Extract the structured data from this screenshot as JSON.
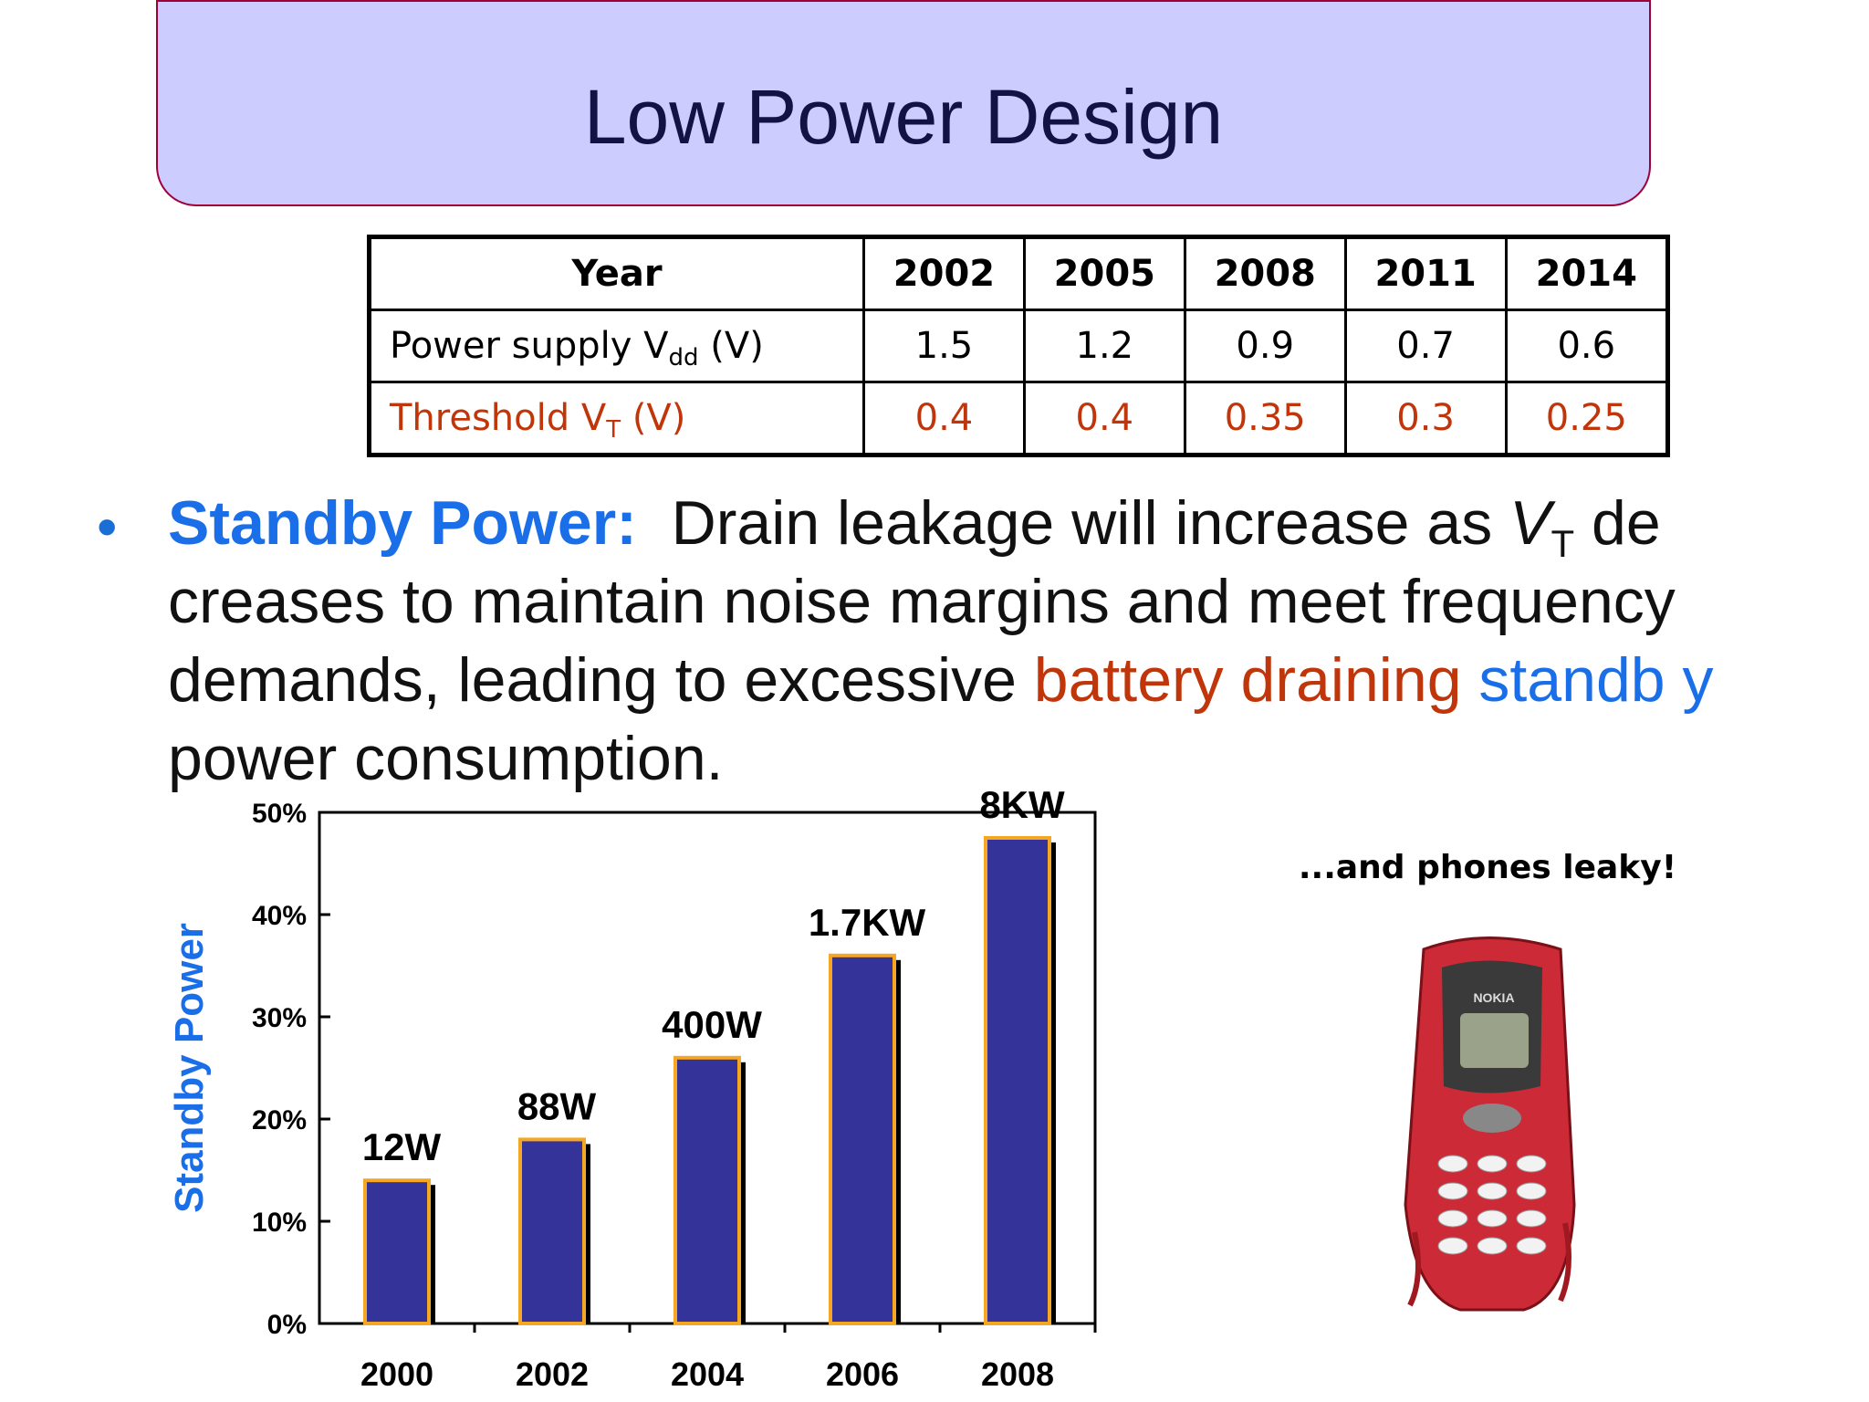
{
  "title": "Low Power Design",
  "table": {
    "header": [
      "Year",
      "2002",
      "2005",
      "2008",
      "2011",
      "2014"
    ],
    "vdd": {
      "label_main": "Power supply V",
      "label_sub": "dd",
      "label_unit": " (V)",
      "values": [
        "1.5",
        "1.2",
        "0.9",
        "0.7",
        "0.6"
      ]
    },
    "vt": {
      "label_main": "Threshold V",
      "label_sub": "T",
      "label_unit": " (V)",
      "values": [
        "0.4",
        "0.4",
        "0.35",
        "0.3",
        "0.25"
      ],
      "color": "#c0360a"
    }
  },
  "bullet": {
    "lead": "Standby Power:",
    "text1": "Drain leakage will increase as ",
    "vt_main": "V",
    "vt_sub": "T",
    "text2": " de creases to maintain noise margins and meet frequency demands, leading to excessive ",
    "red_text": "battery draining",
    "blue_text": " standb y",
    "text3": " power consumption."
  },
  "phone_caption": "...and phones leaky!",
  "phone_icon": "leaky-nokia-phone",
  "chart_data": {
    "type": "bar",
    "categories": [
      "2000",
      "2002",
      "2004",
      "2006",
      "2008"
    ],
    "values": [
      14,
      18,
      26,
      36,
      47.5
    ],
    "data_labels": [
      "12W",
      "88W",
      "400W",
      "1.7KW",
      "8KW"
    ],
    "ylabel": "Standby  Power",
    "ylim": [
      0,
      50
    ],
    "yticks": [
      "0%",
      "10%",
      "20%",
      "30%",
      "40%",
      "50%"
    ],
    "grid": false,
    "bar_color": "#333399",
    "bar_edge_color": "#f5a623"
  }
}
